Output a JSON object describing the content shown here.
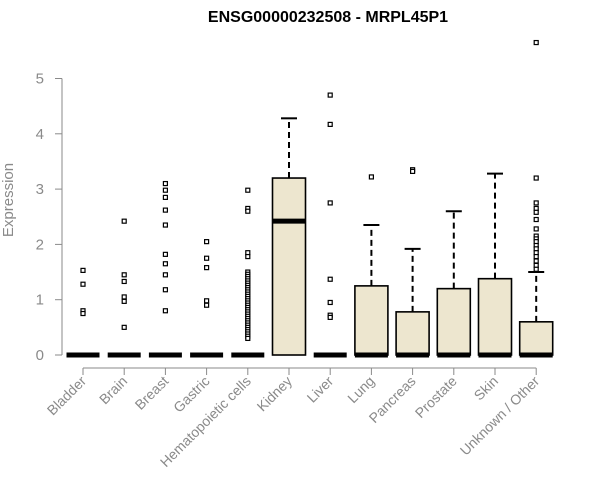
{
  "chart_data": {
    "type": "boxplot",
    "title": "ENSG00000232508 - MRPL45P1",
    "xlabel": "",
    "ylabel": "Expression",
    "ylim": [
      0,
      5.6
    ],
    "yticks": [
      0,
      1,
      2,
      3,
      4,
      5
    ],
    "colors": {
      "box_fill": "#ede6cf",
      "box_stroke": "#000000",
      "axis": "#8a8a8a",
      "title": "#000000"
    },
    "categories": [
      "Bladder",
      "Brain",
      "Breast",
      "Gastric",
      "Hematopoietic cells",
      "Kidney",
      "Liver",
      "Lung",
      "Pancreas",
      "Prostate",
      "Skin",
      "Unknown / Other"
    ],
    "boxes": [
      {
        "q1": 0,
        "median": 0,
        "q3": 0,
        "whisker_low": 0,
        "whisker_high": 0,
        "outliers": [
          1.53,
          1.28,
          0.8,
          0.75
        ]
      },
      {
        "q1": 0,
        "median": 0,
        "q3": 0,
        "whisker_low": 0,
        "whisker_high": 0,
        "outliers": [
          2.42,
          1.45,
          1.33,
          1.05,
          0.97,
          0.5
        ]
      },
      {
        "q1": 0,
        "median": 0,
        "q3": 0,
        "whisker_low": 0,
        "whisker_high": 0,
        "outliers": [
          3.1,
          2.98,
          2.85,
          2.62,
          2.35,
          1.82,
          1.65,
          1.45,
          1.18,
          0.8
        ]
      },
      {
        "q1": 0,
        "median": 0,
        "q3": 0,
        "whisker_low": 0,
        "whisker_high": 0,
        "outliers": [
          2.05,
          1.75,
          1.58,
          0.98,
          0.9
        ]
      },
      {
        "q1": 0,
        "median": 0,
        "q3": 0,
        "whisker_low": 0,
        "whisker_high": 0,
        "outliers": [
          2.98,
          2.65,
          2.6,
          1.85,
          1.78,
          1.5,
          1.46,
          1.42,
          1.38,
          1.34,
          1.3,
          1.26,
          1.22,
          1.18,
          1.14,
          1.1,
          1.06,
          1.02,
          0.98,
          0.94,
          0.9,
          0.86,
          0.82,
          0.78,
          0.74,
          0.7,
          0.66,
          0.62,
          0.58,
          0.54,
          0.5,
          0.46,
          0.42,
          0.38,
          0.34,
          0.3
        ]
      },
      {
        "q1": 0,
        "median": 2.42,
        "q3": 3.2,
        "whisker_low": 0,
        "whisker_high": 4.28,
        "outliers": []
      },
      {
        "q1": 0,
        "median": 0,
        "q3": 0,
        "whisker_low": 0,
        "whisker_high": 0,
        "outliers": [
          4.7,
          4.17,
          2.75,
          1.37,
          0.95,
          0.72,
          0.68
        ]
      },
      {
        "q1": 0,
        "median": 0,
        "q3": 1.25,
        "whisker_low": 0,
        "whisker_high": 2.35,
        "outliers": [
          3.22
        ]
      },
      {
        "q1": 0,
        "median": 0,
        "q3": 0.78,
        "whisker_low": 0,
        "whisker_high": 1.92,
        "outliers": [
          3.35,
          3.32
        ]
      },
      {
        "q1": 0,
        "median": 0,
        "q3": 1.2,
        "whisker_low": 0,
        "whisker_high": 2.6,
        "outliers": []
      },
      {
        "q1": 0,
        "median": 0,
        "q3": 1.38,
        "whisker_low": 0,
        "whisker_high": 3.28,
        "outliers": []
      },
      {
        "q1": 0,
        "median": 0,
        "q3": 0.6,
        "whisker_low": 0,
        "whisker_high": 1.5,
        "outliers": [
          5.65,
          3.2,
          2.75,
          2.65,
          2.58,
          2.45,
          2.28,
          2.15,
          2.1,
          2.05,
          1.98,
          1.92,
          1.85,
          1.78,
          1.7,
          1.62,
          1.55
        ]
      }
    ]
  }
}
